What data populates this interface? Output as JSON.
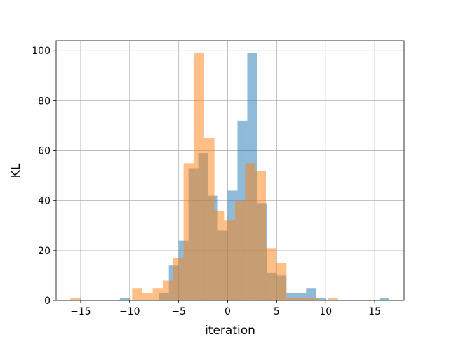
{
  "chart_data": {
    "type": "bar",
    "title": "",
    "xlabel": "iteration",
    "ylabel": "KL",
    "xlim": [
      -17.5,
      18
    ],
    "ylim": [
      0,
      104
    ],
    "xticks": [
      -15,
      -10,
      -5,
      0,
      5,
      10,
      15
    ],
    "yticks": [
      0,
      20,
      40,
      60,
      80,
      100
    ],
    "xtick_labels": [
      "−15",
      "−10",
      "−5",
      "0",
      "5",
      "10",
      "15"
    ],
    "ytick_labels": [
      "0",
      "20",
      "40",
      "60",
      "80",
      "100"
    ],
    "grid": true,
    "legend": "none",
    "series": [
      {
        "color": "#1f77b4",
        "opacity": 0.5,
        "bin_width": 1.0,
        "bin_starts": [
          -11,
          -7,
          -6,
          -5,
          -4,
          -3,
          -2,
          -1,
          0,
          1,
          2,
          3,
          4,
          5,
          6,
          7,
          8,
          9,
          15.5
        ],
        "counts": [
          1,
          3,
          14,
          24,
          53,
          59,
          42,
          28,
          44,
          72,
          99,
          39,
          11,
          10,
          3,
          3,
          5,
          1,
          1
        ]
      },
      {
        "color": "#ff7f0e",
        "opacity": 0.5,
        "bin_width": 1.05,
        "bin_starts": [
          -16.05,
          -9.75,
          -8.7,
          -7.65,
          -6.6,
          -5.55,
          -4.5,
          -3.45,
          -2.4,
          -1.35,
          -0.3,
          0.75,
          1.8,
          2.85,
          3.9,
          4.95,
          6.0,
          7.05,
          8.1,
          9.15,
          10.2
        ],
        "counts": [
          1,
          5,
          3,
          5,
          8,
          17,
          55,
          99,
          65,
          36,
          32,
          40,
          55,
          52,
          21,
          15,
          1,
          1,
          1,
          0,
          1
        ]
      }
    ]
  }
}
